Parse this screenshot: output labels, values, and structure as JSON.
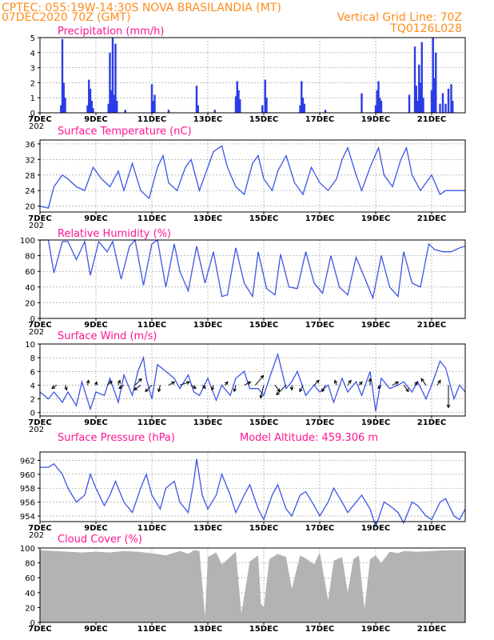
{
  "header": {
    "line1": "CPTEC:  055:19W-14:30S  NOVA BRASILANDIA (MT)",
    "line2_left": "07DEC2020 70Z (GMT)",
    "line2_right": "Vertical Grid Line: 70Z",
    "line3_right": "TQ0126L028",
    "model_altitude": "Model Altitude: 459.306 m",
    "year_fragment": "202"
  },
  "x_axis": {
    "start_day": 7,
    "end_day": 22.2,
    "date_labels": [
      "7DEC",
      "9DEC",
      "11DEC",
      "13DEC",
      "15DEC",
      "17DEC",
      "19DEC",
      "21DEC"
    ],
    "date_values": [
      7,
      9,
      11,
      13,
      15,
      17,
      19,
      21
    ]
  },
  "colors": {
    "line": "#3b55e6",
    "bar": "#2a3ce8",
    "cloud": "#b3b3b3",
    "title": "#ff1493",
    "header": "#ff8c1a"
  },
  "chart_data": [
    {
      "type": "bar",
      "title": "Precipitation (mm/h)",
      "ylim": [
        0,
        5
      ],
      "yticks": [
        0,
        1,
        2,
        3,
        4,
        5
      ],
      "grid": true,
      "x": [
        7.75,
        7.8,
        7.85,
        7.9,
        8.7,
        8.75,
        8.8,
        8.85,
        8.9,
        9.45,
        9.5,
        9.55,
        9.6,
        9.65,
        9.7,
        9.75,
        10.05,
        11.0,
        11.05,
        11.1,
        11.6,
        12.6,
        12.65,
        13.25,
        14.0,
        14.05,
        14.1,
        14.15,
        14.95,
        15.05,
        15.1,
        16.3,
        16.35,
        16.4,
        16.45,
        17.2,
        18.5,
        19.0,
        19.05,
        19.1,
        19.15,
        19.2,
        20.2,
        20.4,
        20.45,
        20.5,
        20.55,
        20.6,
        20.65,
        20.7,
        21.0,
        21.05,
        21.1,
        21.15,
        21.3,
        21.4,
        21.5,
        21.6,
        21.7,
        21.75
      ],
      "values": [
        0.5,
        4.9,
        2.0,
        1.0,
        0.5,
        2.2,
        1.6,
        0.8,
        0.3,
        0.6,
        4.0,
        1.5,
        5.0,
        1.2,
        4.6,
        0.8,
        0.2,
        1.9,
        0.8,
        1.2,
        0.2,
        1.8,
        0.5,
        0.2,
        1.1,
        2.1,
        1.5,
        0.9,
        0.5,
        2.2,
        1.0,
        0.5,
        2.1,
        1.0,
        0.6,
        0.2,
        1.3,
        0.5,
        1.5,
        2.1,
        1.0,
        0.8,
        1.2,
        4.4,
        1.8,
        0.8,
        3.2,
        2.0,
        4.7,
        1.0,
        1.5,
        5.0,
        2.3,
        4.0,
        0.6,
        1.3,
        0.6,
        1.6,
        1.9,
        0.8
      ]
    },
    {
      "type": "line",
      "title": "Surface Temperature (nC)",
      "ylim": [
        18.5,
        37
      ],
      "yticks": [
        20,
        24,
        28,
        32,
        36
      ],
      "grid": true,
      "x": [
        7.0,
        7.3,
        7.5,
        7.8,
        8.0,
        8.3,
        8.6,
        8.9,
        9.2,
        9.5,
        9.8,
        10.0,
        10.3,
        10.6,
        10.9,
        11.2,
        11.4,
        11.6,
        11.9,
        12.2,
        12.4,
        12.7,
        12.9,
        13.2,
        13.5,
        13.7,
        14.0,
        14.3,
        14.6,
        14.8,
        15.0,
        15.3,
        15.5,
        15.8,
        16.1,
        16.4,
        16.7,
        17.0,
        17.3,
        17.6,
        17.8,
        18.0,
        18.3,
        18.5,
        18.8,
        19.1,
        19.3,
        19.6,
        19.9,
        20.1,
        20.3,
        20.6,
        20.8,
        21.0,
        21.3,
        21.5,
        21.8,
        22.2
      ],
      "values": [
        20,
        19.5,
        25,
        28,
        27,
        25,
        24,
        30,
        27,
        25,
        29,
        24,
        31,
        24,
        22,
        30,
        33,
        26,
        24,
        30,
        32,
        24,
        28,
        34,
        35.5,
        30,
        25,
        23,
        31,
        33,
        27,
        24,
        29,
        33,
        26,
        23,
        30,
        26,
        24,
        27,
        32,
        35,
        28,
        24,
        30,
        35,
        28,
        25,
        32,
        35,
        28,
        24,
        26,
        28,
        23,
        24,
        24,
        24
      ]
    },
    {
      "type": "line",
      "title": "Relative Humidity (%)",
      "ylim": [
        0,
        100
      ],
      "yticks": [
        0,
        20,
        40,
        60,
        80,
        100
      ],
      "grid": true,
      "x": [
        7.0,
        7.3,
        7.5,
        7.8,
        8.0,
        8.3,
        8.6,
        8.8,
        9.1,
        9.4,
        9.6,
        9.9,
        10.2,
        10.4,
        10.7,
        11.0,
        11.2,
        11.5,
        11.8,
        12.0,
        12.3,
        12.6,
        12.9,
        13.2,
        13.5,
        13.7,
        14.0,
        14.3,
        14.6,
        14.8,
        15.1,
        15.4,
        15.6,
        15.9,
        16.2,
        16.5,
        16.8,
        17.1,
        17.4,
        17.7,
        18.0,
        18.3,
        18.6,
        18.9,
        19.2,
        19.5,
        19.8,
        20.0,
        20.3,
        20.6,
        20.9,
        21.1,
        21.4,
        21.7,
        22.0,
        22.2
      ],
      "values": [
        100,
        100,
        58,
        98,
        98,
        75,
        98,
        55,
        98,
        85,
        98,
        50,
        92,
        100,
        42,
        95,
        100,
        40,
        95,
        60,
        35,
        92,
        45,
        85,
        28,
        30,
        90,
        45,
        28,
        85,
        38,
        30,
        82,
        40,
        38,
        85,
        45,
        32,
        80,
        40,
        30,
        78,
        52,
        26,
        80,
        40,
        28,
        85,
        45,
        40,
        95,
        88,
        85,
        85,
        90,
        92
      ]
    },
    {
      "type": "line",
      "title": "Surface Wind (m/s)",
      "ylim": [
        -0.5,
        10
      ],
      "yticks": [
        0,
        2,
        4,
        6,
        8,
        10
      ],
      "grid": true,
      "x": [
        7.0,
        7.3,
        7.5,
        7.8,
        8.0,
        8.3,
        8.5,
        8.8,
        9.0,
        9.3,
        9.5,
        9.8,
        10.0,
        10.3,
        10.5,
        10.7,
        10.8,
        11.0,
        11.2,
        11.5,
        11.8,
        12.0,
        12.3,
        12.5,
        12.7,
        13.0,
        13.3,
        13.5,
        13.8,
        14.0,
        14.3,
        14.5,
        14.8,
        15.0,
        15.2,
        15.5,
        15.8,
        16.0,
        16.2,
        16.5,
        16.8,
        17.0,
        17.3,
        17.5,
        17.8,
        18.0,
        18.3,
        18.5,
        18.8,
        19.0,
        19.2,
        19.5,
        19.8,
        20.0,
        20.3,
        20.5,
        20.8,
        21.0,
        21.3,
        21.5,
        21.8,
        22.0,
        22.2
      ],
      "values": [
        3,
        2,
        3,
        1.5,
        3,
        1,
        4.5,
        0.5,
        3,
        2.5,
        5,
        1.5,
        5.5,
        2.5,
        6,
        8,
        5,
        2,
        7,
        6,
        5,
        3.5,
        5.5,
        3,
        2.5,
        5,
        1.8,
        4,
        2.5,
        5,
        6,
        3.5,
        3.5,
        2.5,
        5,
        8.5,
        3.5,
        4.5,
        6,
        2.5,
        4,
        3,
        4,
        1.5,
        5,
        3,
        4.5,
        2.5,
        6,
        0.2,
        5,
        3.5,
        4,
        4.5,
        3,
        4.5,
        2,
        4,
        7.5,
        6.5,
        2,
        4,
        3
      ]
    },
    {
      "type": "line",
      "title": "Surface Pressure (hPa)",
      "ylim": [
        953.2,
        963.2
      ],
      "yticks": [
        954,
        956,
        958,
        960,
        962
      ],
      "grid": true,
      "x": [
        7.0,
        7.3,
        7.5,
        7.8,
        8.0,
        8.3,
        8.6,
        8.8,
        9.0,
        9.3,
        9.5,
        9.7,
        10.0,
        10.3,
        10.6,
        10.8,
        11.0,
        11.3,
        11.5,
        11.8,
        12.0,
        12.3,
        12.5,
        12.6,
        12.8,
        13.0,
        13.3,
        13.5,
        13.8,
        14.0,
        14.3,
        14.5,
        14.8,
        15.0,
        15.3,
        15.5,
        15.8,
        16.0,
        16.3,
        16.5,
        16.8,
        17.0,
        17.3,
        17.5,
        17.8,
        18.0,
        18.3,
        18.5,
        18.8,
        19.0,
        19.3,
        19.5,
        19.8,
        20.0,
        20.3,
        20.5,
        20.8,
        21.0,
        21.3,
        21.5,
        21.8,
        22.0,
        22.2
      ],
      "values": [
        961,
        961,
        961.5,
        960,
        958,
        956,
        957,
        960,
        958,
        955.5,
        957,
        959,
        956,
        954.5,
        958,
        960,
        957,
        955,
        958,
        959,
        956,
        954.5,
        959,
        962.2,
        957,
        955,
        957,
        960,
        957,
        954.5,
        957,
        958.5,
        955,
        953.5,
        957,
        958.5,
        955,
        954,
        957,
        957.5,
        955.5,
        954,
        956,
        958,
        956,
        954.5,
        956,
        957,
        955,
        952.5,
        956,
        955.5,
        954.5,
        953,
        956,
        955.5,
        954,
        953.5,
        956,
        956.5,
        954,
        953.5,
        955
      ]
    },
    {
      "type": "area",
      "title": "Cloud Cover (%)",
      "ylim": [
        0,
        100
      ],
      "yticks": [
        0,
        20,
        40,
        60,
        80,
        100
      ],
      "grid": true,
      "x": [
        7.0,
        7.5,
        8.0,
        8.5,
        9.0,
        9.5,
        10.0,
        10.5,
        11.0,
        11.5,
        12.0,
        12.3,
        12.5,
        12.7,
        12.9,
        13.0,
        13.3,
        13.5,
        13.8,
        14.0,
        14.2,
        14.5,
        14.8,
        14.9,
        15.0,
        15.2,
        15.5,
        15.8,
        16.0,
        16.3,
        16.5,
        16.8,
        17.0,
        17.3,
        17.5,
        17.8,
        18.0,
        18.2,
        18.4,
        18.6,
        18.8,
        19.0,
        19.2,
        19.5,
        19.8,
        20.0,
        20.5,
        21.0,
        21.5,
        22.0,
        22.2
      ],
      "values": [
        97,
        96,
        95,
        94,
        95,
        94,
        96,
        95,
        93,
        90,
        96,
        92,
        97,
        96,
        8,
        88,
        94,
        78,
        88,
        95,
        12,
        82,
        90,
        25,
        20,
        85,
        92,
        88,
        45,
        90,
        86,
        78,
        94,
        30,
        83,
        88,
        40,
        85,
        90,
        18,
        85,
        90,
        80,
        95,
        93,
        96,
        95,
        96,
        97,
        97,
        97
      ]
    }
  ],
  "wind_arrows": {
    "x": [
      7.6,
      7.9,
      8.7,
      9.0,
      9.4,
      9.8,
      10.0,
      10.4,
      10.6,
      11.0,
      11.3,
      11.6,
      12.0,
      12.4,
      12.8,
      13.2,
      13.6,
      14.0,
      14.3,
      14.7,
      15.0,
      15.4,
      15.8,
      16.0,
      16.4,
      16.8,
      17.2,
      17.6,
      18.0,
      18.4,
      18.8,
      19.2,
      19.6,
      20.0,
      20.4,
      20.8,
      21.2,
      21.6
    ],
    "u": [
      -1.5,
      0.5,
      0.3,
      0.2,
      1.5,
      0.5,
      -1.5,
      2,
      -2,
      -2,
      -0.5,
      1.8,
      3,
      1.5,
      1,
      -0.5,
      1,
      -0.5,
      2,
      2.5,
      -1,
      1.5,
      -3,
      0,
      -1,
      1.5,
      -1,
      -0.5,
      1,
      1,
      0,
      -1,
      1.8,
      1.5,
      0.8,
      -1.5,
      1,
      0
    ],
    "v": [
      -1,
      -1.5,
      1.5,
      1,
      1.2,
      1.5,
      -1,
      2,
      -1.5,
      -2,
      -2,
      1,
      1,
      -1,
      -1,
      -1.5,
      1,
      -2,
      1,
      3,
      -4,
      -2,
      -3,
      -1.5,
      -2,
      1.5,
      -2,
      1.5,
      1.5,
      1,
      2,
      -1,
      1,
      -2,
      1,
      2,
      1.5,
      -7
    ]
  }
}
